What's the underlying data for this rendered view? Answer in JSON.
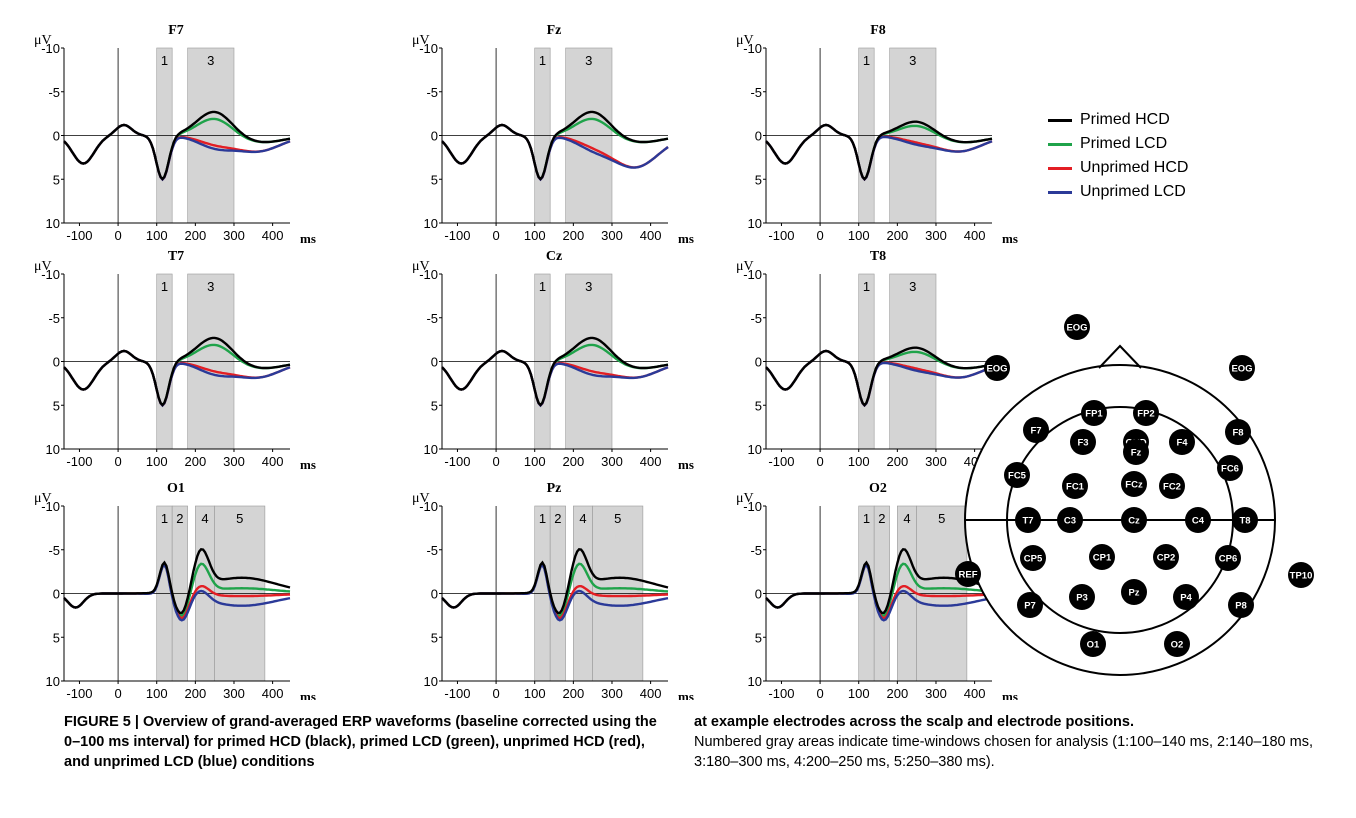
{
  "figure": {
    "panels": [
      {
        "electrode": "F7",
        "windows": [
          1,
          3
        ]
      },
      {
        "electrode": "Fz",
        "windows": [
          1,
          3
        ]
      },
      {
        "electrode": "F8",
        "windows": [
          1,
          3
        ]
      },
      {
        "electrode": "T7",
        "windows": [
          1,
          3
        ]
      },
      {
        "electrode": "Cz",
        "windows": [
          1,
          3
        ]
      },
      {
        "electrode": "T8",
        "windows": [
          1,
          3
        ]
      },
      {
        "electrode": "O1",
        "windows": [
          1,
          2,
          4,
          5
        ]
      },
      {
        "electrode": "Pz",
        "windows": [
          1,
          2,
          4,
          5
        ]
      },
      {
        "electrode": "O2",
        "windows": [
          1,
          2,
          4,
          5
        ]
      }
    ],
    "y_unit": "μV",
    "x_unit": "ms",
    "x_ticks": [
      "-100",
      "0",
      "100",
      "200",
      "300",
      "400"
    ],
    "y_ticks": [
      "-10",
      "-5",
      "0",
      "5",
      "10"
    ],
    "time_windows": [
      {
        "id": "1",
        "start": 100,
        "end": 140
      },
      {
        "id": "2",
        "start": 140,
        "end": 180
      },
      {
        "id": "3",
        "start": 180,
        "end": 300
      },
      {
        "id": "4",
        "start": 200,
        "end": 250
      },
      {
        "id": "5",
        "start": 250,
        "end": 380
      }
    ],
    "legend": [
      {
        "label": "Primed HCD",
        "color": "#000000"
      },
      {
        "label": "Primed LCD",
        "color": "#1fa34a"
      },
      {
        "label": "Unprimed HCD",
        "color": "#e31e24"
      },
      {
        "label": "Unprimed LCD",
        "color": "#2b3a98"
      }
    ],
    "head_electrodes": [
      "EOG",
      "EOG",
      "EOG",
      "FP1",
      "FP2",
      "GND",
      "F7",
      "F3",
      "Fz",
      "F4",
      "F8",
      "FC5",
      "FC1",
      "FCz",
      "FC2",
      "FC6",
      "T7",
      "C3",
      "Cz",
      "C4",
      "T8",
      "CP5",
      "CP1",
      "CP2",
      "CP6",
      "REF",
      "TP10",
      "P7",
      "P3",
      "Pz",
      "P4",
      "P8",
      "O1",
      "O2"
    ]
  },
  "caption": {
    "left": "FIGURE 5 | Overview of grand-averaged ERP waveforms (baseline corrected using the 0–100 ms interval) for primed HCD (black), primed LCD (green), unprimed HCD (red), and unprimed LCD (blue) conditions",
    "right_bold": "at example electrodes across the scalp and electrode positions.",
    "right_normal": "Numbered gray areas indicate time-windows chosen for analysis (1:100–140 ms, 2:140–180 ms, 3:180–300 ms, 4:200–250 ms, 5:250–380 ms)."
  }
}
